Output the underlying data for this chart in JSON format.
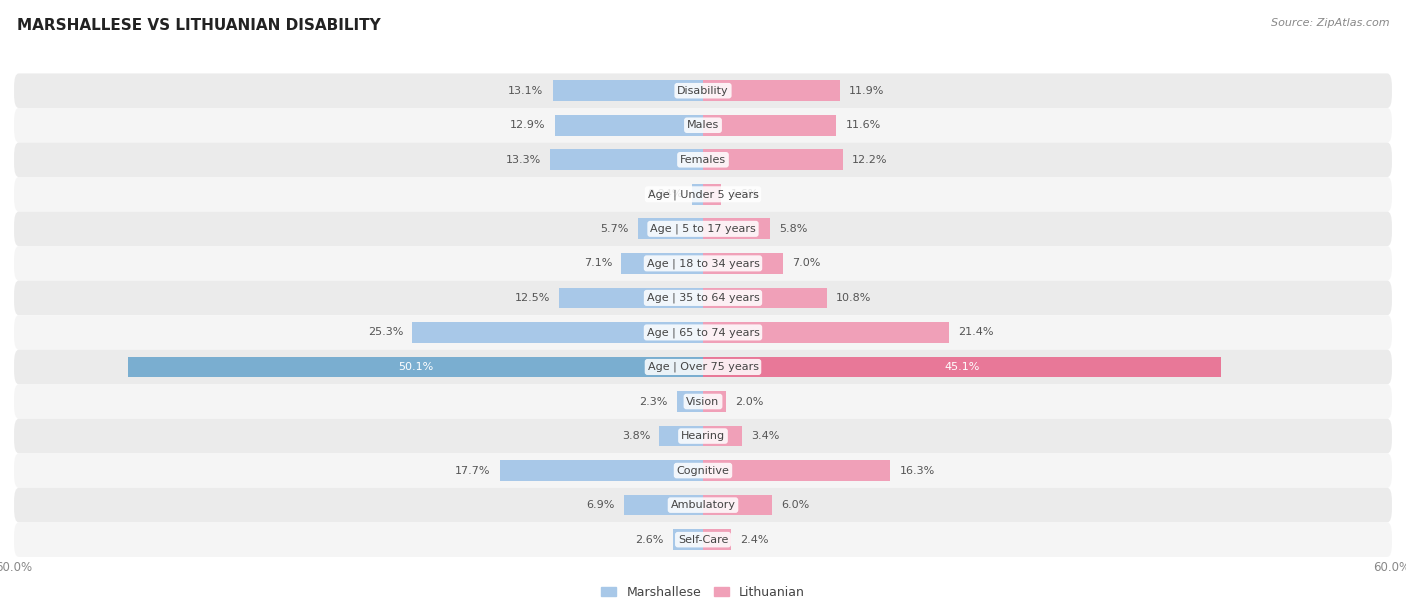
{
  "title": "MARSHALLESE VS LITHUANIAN DISABILITY",
  "source": "Source: ZipAtlas.com",
  "categories": [
    "Disability",
    "Males",
    "Females",
    "Age | Under 5 years",
    "Age | 5 to 17 years",
    "Age | 18 to 34 years",
    "Age | 35 to 64 years",
    "Age | 65 to 74 years",
    "Age | Over 75 years",
    "Vision",
    "Hearing",
    "Cognitive",
    "Ambulatory",
    "Self-Care"
  ],
  "marshallese": [
    13.1,
    12.9,
    13.3,
    0.94,
    5.7,
    7.1,
    12.5,
    25.3,
    50.1,
    2.3,
    3.8,
    17.7,
    6.9,
    2.6
  ],
  "lithuanian": [
    11.9,
    11.6,
    12.2,
    1.6,
    5.8,
    7.0,
    10.8,
    21.4,
    45.1,
    2.0,
    3.4,
    16.3,
    6.0,
    2.4
  ],
  "marshallese_color": "#a8c8e8",
  "lithuanian_color": "#f0a0b8",
  "marshallese_highlight": "#7aaed0",
  "lithuanian_highlight": "#e87898",
  "bar_height": 0.6,
  "xlim": 60.0,
  "row_even_color": "#ebebeb",
  "row_odd_color": "#f5f5f5",
  "title_fontsize": 11,
  "source_fontsize": 8,
  "label_fontsize": 8,
  "category_fontsize": 8,
  "axis_label_fontsize": 8.5,
  "legend_fontsize": 9
}
